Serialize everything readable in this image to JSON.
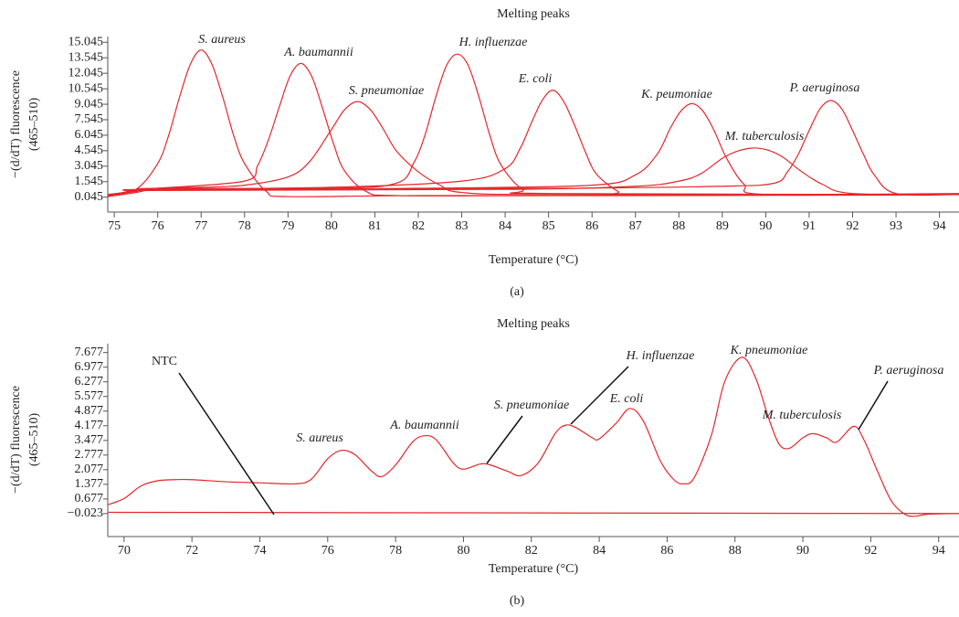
{
  "chart_data": [
    {
      "type": "line",
      "title": "Melting peaks",
      "xlabel": "Temperature (°C)",
      "ylabel": [
        "−(d/dT) fluorescence",
        "(465–510)"
      ],
      "panel_label": "(a)",
      "xlim": [
        74.85,
        94.45
      ],
      "ylim": [
        -1.4,
        15.6
      ],
      "xticks": [
        75,
        76,
        77,
        78,
        79,
        80,
        81,
        82,
        83,
        84,
        85,
        86,
        87,
        88,
        89,
        90,
        91,
        92,
        93,
        94
      ],
      "yticks": [
        0.045,
        1.545,
        3.045,
        4.545,
        6.045,
        7.545,
        9.045,
        10.545,
        12.045,
        13.545,
        15.045
      ],
      "series": [
        {
          "name": "S. aureus",
          "color": "#e5262b",
          "x": [
            74.85,
            75.5,
            76,
            76.25,
            76.5,
            76.75,
            77,
            77.25,
            77.5,
            77.75,
            78,
            78.5,
            79,
            82,
            88,
            94.45
          ],
          "values": [
            0.3,
            0.8,
            3.3,
            6.0,
            9.7,
            12.9,
            14.3,
            12.9,
            9.7,
            6.0,
            3.3,
            0.6,
            0.1,
            0.2,
            0.2,
            0.4
          ]
        },
        {
          "name": "A. baumannii",
          "color": "#e5262b",
          "x": [
            74.85,
            75.5,
            76,
            78,
            78.3,
            78.55,
            78.8,
            79.05,
            79.3,
            79.55,
            79.8,
            80.05,
            80.3,
            80.8,
            81.5,
            85,
            94.45
          ],
          "values": [
            0.2,
            0.7,
            0.9,
            1.6,
            3.1,
            5.6,
            8.8,
            11.8,
            13.0,
            11.7,
            8.6,
            5.2,
            2.6,
            0.6,
            0.2,
            0.2,
            0.3
          ]
        },
        {
          "name": "S. pneumoniae",
          "color": "#e5262b",
          "x": [
            74.85,
            75.5,
            76,
            77,
            78,
            79,
            79.5,
            80,
            80.3,
            80.6,
            80.9,
            81.2,
            81.5,
            82,
            82.5,
            83,
            85,
            94.45
          ],
          "values": [
            0.1,
            0.5,
            0.9,
            1.0,
            1.2,
            2.0,
            3.5,
            6.6,
            8.5,
            9.3,
            8.5,
            6.6,
            4.5,
            2.5,
            1.2,
            0.5,
            0.3,
            0.3
          ]
        },
        {
          "name": "H. influenzae",
          "color": "#e5262b",
          "x": [
            74.85,
            75.5,
            76,
            80,
            81.5,
            81.9,
            82.15,
            82.4,
            82.65,
            82.9,
            83.15,
            83.4,
            83.65,
            83.9,
            84.4,
            85,
            94.45
          ],
          "values": [
            0.2,
            0.7,
            0.9,
            0.9,
            1.4,
            3.4,
            6.0,
            9.7,
            12.8,
            13.9,
            12.8,
            9.7,
            6.0,
            3.2,
            0.8,
            0.4,
            0.3
          ]
        },
        {
          "name": "E. coli",
          "color": "#e5262b",
          "x": [
            74.85,
            75.5,
            76,
            80,
            83,
            84,
            84.35,
            84.6,
            84.85,
            85.1,
            85.35,
            85.6,
            85.85,
            86.1,
            86.6,
            87,
            94.45
          ],
          "values": [
            0.2,
            0.7,
            0.8,
            1.0,
            1.6,
            2.8,
            4.8,
            7.2,
            9.4,
            10.4,
            9.3,
            7.0,
            4.4,
            2.3,
            0.6,
            0.2,
            0.3
          ]
        },
        {
          "name": "K. peumoniae",
          "color": "#e5262b",
          "x": [
            74.85,
            75.5,
            76,
            82,
            86,
            87,
            87.5,
            87.8,
            88.05,
            88.3,
            88.55,
            88.8,
            89.1,
            89.5,
            90,
            94.45
          ],
          "values": [
            0.1,
            0.6,
            0.7,
            0.9,
            1.2,
            2.2,
            4.2,
            6.7,
            8.4,
            9.1,
            8.4,
            6.6,
            3.8,
            1.3,
            0.3,
            0.3
          ]
        },
        {
          "name": "M. tuberculosis",
          "color": "#e5262b",
          "x": [
            74.85,
            75.5,
            76,
            84,
            87,
            88,
            88.5,
            89,
            89.35,
            89.7,
            90.05,
            90.4,
            90.8,
            91.3,
            92,
            94.45
          ],
          "values": [
            0.3,
            0.6,
            0.7,
            0.8,
            1.1,
            1.6,
            2.3,
            3.8,
            4.5,
            4.8,
            4.6,
            3.9,
            2.6,
            1.3,
            0.4,
            0.3
          ]
        },
        {
          "name": "P. aeruginosa",
          "color": "#e5262b",
          "x": [
            74.85,
            75.5,
            76,
            85,
            89,
            90.2,
            90.5,
            90.75,
            91,
            91.25,
            91.5,
            91.75,
            92,
            92.25,
            92.5,
            93,
            94.45
          ],
          "values": [
            0.3,
            0.6,
            0.8,
            0.9,
            1.1,
            1.4,
            2.5,
            4.2,
            6.5,
            8.6,
            9.4,
            8.6,
            6.5,
            4.2,
            2.2,
            0.4,
            0.3
          ]
        }
      ]
    },
    {
      "type": "line",
      "title": "Melting peaks",
      "xlabel": "Temperature (°C)",
      "ylabel": [
        "−(d/dT) fluorescence",
        "(465–510)"
      ],
      "panel_label": "(b)",
      "xlim": [
        69.52,
        94.6
      ],
      "ylim": [
        -1.12,
        8.1
      ],
      "xticks": [
        70,
        72,
        74,
        76,
        78,
        80,
        82,
        84,
        86,
        88,
        90,
        92,
        94
      ],
      "yticks": [
        {
          "value": -0.023,
          "label": "−0.023"
        },
        0.677,
        1.377,
        2.077,
        2.777,
        3.477,
        4.177,
        4.877,
        5.577,
        6.277,
        6.977,
        7.677
      ],
      "annotations": [
        "S. aureus",
        "A. baumannii",
        "S. pneumoniae",
        "H. influenzae",
        "E. coli",
        "K. pneumoniae",
        "M. tuberculosis",
        "P. aeruginosa"
      ],
      "series": [
        {
          "color": "#e5262b",
          "x": [
            69.52,
            70,
            70.5,
            71,
            71.5,
            72,
            73,
            74,
            75,
            75.5,
            76,
            76.4,
            76.8,
            77.3,
            77.6,
            78,
            78.5,
            78.85,
            79.2,
            79.7,
            80,
            80.5,
            80.8,
            81.3,
            81.7,
            82.2,
            82.7,
            83,
            83.3,
            83.8,
            84,
            84.5,
            84.9,
            85.3,
            85.8,
            86.2,
            86.5,
            86.8,
            87.3,
            87.7,
            88.2,
            88.6,
            89,
            89.3,
            89.6,
            90,
            90.3,
            90.7,
            91,
            91.5,
            91.8,
            92.2,
            92.6,
            93,
            93.3,
            93.7,
            94.6
          ],
          "values": [
            0.4,
            0.7,
            1.3,
            1.55,
            1.6,
            1.6,
            1.5,
            1.45,
            1.4,
            1.6,
            2.6,
            3.0,
            2.8,
            2.0,
            1.75,
            2.3,
            3.4,
            3.7,
            3.5,
            2.4,
            2.1,
            2.35,
            2.3,
            2.0,
            1.8,
            2.4,
            3.8,
            4.2,
            4.1,
            3.6,
            3.55,
            4.3,
            5.0,
            4.4,
            2.5,
            1.6,
            1.4,
            1.7,
            3.7,
            6.3,
            7.45,
            6.5,
            4.5,
            3.3,
            3.1,
            3.6,
            3.8,
            3.6,
            3.4,
            4.15,
            3.5,
            2.0,
            0.6,
            -0.05,
            -0.15,
            -0.05,
            -0.02
          ]
        },
        {
          "name": "NTC",
          "color": "#e5262b",
          "x": [
            69.52,
            94.6
          ],
          "values": [
            0.04,
            -0.02
          ]
        }
      ]
    }
  ]
}
